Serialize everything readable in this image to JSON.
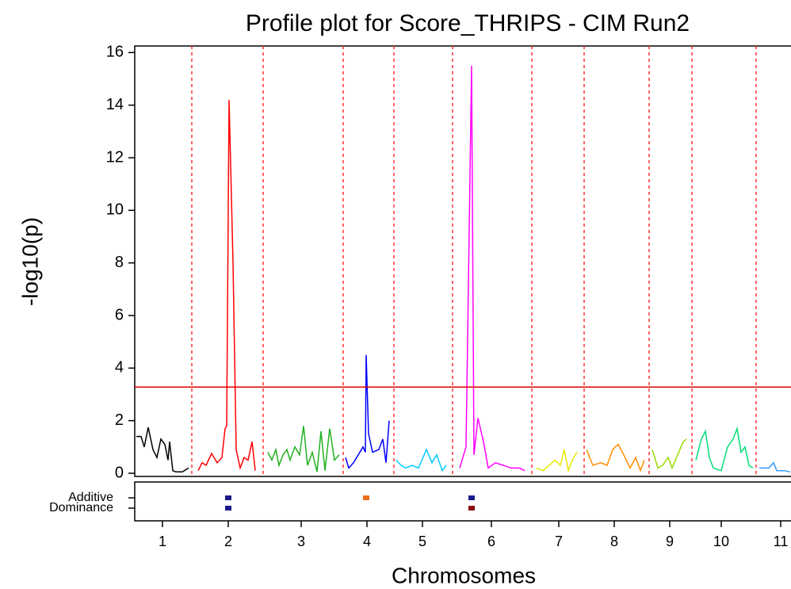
{
  "chart_data": {
    "type": "line",
    "title": "Profile plot for Score_THRIPS - CIM Run2",
    "y_label": "-log10(p)",
    "x_label": "Chromosomes",
    "xlim": [
      0,
      828
    ],
    "ylim": [
      0,
      16.25
    ],
    "yticks": [
      0,
      2,
      4,
      6,
      8,
      10,
      12,
      14,
      16
    ],
    "xticks": [
      {
        "value": 35,
        "label": "1"
      },
      {
        "value": 118,
        "label": "2"
      },
      {
        "value": 210,
        "label": "3"
      },
      {
        "value": 293,
        "label": "4"
      },
      {
        "value": 363,
        "label": "5"
      },
      {
        "value": 450,
        "label": "6"
      },
      {
        "value": 535,
        "label": "7"
      },
      {
        "value": 605,
        "label": "8"
      },
      {
        "value": 675,
        "label": "9"
      },
      {
        "value": 740,
        "label": "10"
      },
      {
        "value": 815,
        "label": "11"
      }
    ],
    "chromosome_boundaries": [
      72,
      162,
      263,
      327,
      401,
      501,
      567,
      649,
      703,
      784
    ],
    "threshold": 3.28,
    "series": [
      {
        "color": "#000000",
        "x": [
          2,
          8,
          12,
          17,
          23,
          28,
          33,
          38,
          42,
          44,
          48,
          52,
          60,
          68
        ],
        "values": [
          1.4,
          1.4,
          1.0,
          1.75,
          0.9,
          0.6,
          1.3,
          1.1,
          0.5,
          1.2,
          0.1,
          0.05,
          0.05,
          0.2
        ]
      },
      {
        "color": "#ff0000",
        "x": [
          80,
          85,
          90,
          97,
          104,
          110,
          114,
          116,
          119,
          124,
          128,
          133,
          138,
          143,
          148,
          152
        ],
        "values": [
          0.1,
          0.4,
          0.3,
          0.75,
          0.4,
          0.6,
          1.7,
          1.8,
          14.2,
          8,
          0.9,
          0.2,
          0.6,
          0.5,
          1.2,
          0.1
        ]
      },
      {
        "color": "#22b022",
        "x": [
          168,
          173,
          178,
          182,
          187,
          192,
          196,
          202,
          208,
          213,
          218,
          224,
          230,
          235,
          240,
          246,
          252,
          258
        ],
        "values": [
          0.8,
          0.5,
          0.9,
          0.3,
          0.7,
          0.9,
          0.5,
          1.0,
          0.7,
          1.8,
          0.3,
          0.8,
          0.05,
          1.6,
          0.1,
          1.7,
          0.5,
          0.7
        ]
      },
      {
        "color": "#0000ff",
        "x": [
          266,
          270,
          276,
          282,
          288,
          291,
          292,
          295,
          300,
          308,
          313,
          317,
          321
        ],
        "values": [
          0.6,
          0.2,
          0.4,
          0.7,
          1.0,
          0.8,
          4.5,
          1.5,
          0.8,
          0.9,
          1.3,
          0.4,
          2.0
        ]
      },
      {
        "color": "#00ccff",
        "x": [
          330,
          336,
          342,
          350,
          358,
          368,
          375,
          381,
          388,
          393
        ],
        "values": [
          0.5,
          0.3,
          0.2,
          0.3,
          0.2,
          0.9,
          0.4,
          0.7,
          0.1,
          0.3
        ]
      },
      {
        "color": "#ff00ff",
        "x": [
          410,
          418,
          425,
          428,
          433,
          440,
          446,
          455,
          465,
          475,
          485,
          492
        ],
        "values": [
          0.2,
          1.0,
          15.5,
          0.7,
          2.1,
          1.2,
          0.2,
          0.4,
          0.3,
          0.2,
          0.2,
          0.1
        ]
      },
      {
        "color": "#e8e800",
        "x": [
          507,
          515,
          523,
          530,
          537,
          542,
          547,
          552,
          558
        ],
        "values": [
          0.2,
          0.1,
          0.3,
          0.5,
          0.3,
          0.9,
          0.1,
          0.5,
          0.8
        ]
      },
      {
        "color": "#ff8c00",
        "x": [
          570,
          578,
          588,
          596,
          603,
          610,
          617,
          625,
          632,
          638,
          643
        ],
        "values": [
          0.9,
          0.3,
          0.4,
          0.3,
          0.9,
          1.1,
          0.7,
          0.2,
          0.6,
          0.1,
          0.5
        ]
      },
      {
        "color": "#99dd00",
        "x": [
          653,
          660,
          666,
          673,
          678,
          685,
          692,
          696
        ],
        "values": [
          0.9,
          0.2,
          0.3,
          0.6,
          0.2,
          0.7,
          1.2,
          1.3
        ]
      },
      {
        "color": "#00dd77",
        "x": [
          708,
          715,
          720,
          725,
          730,
          740,
          748,
          755,
          760,
          765,
          770,
          775,
          780
        ],
        "values": [
          0.5,
          1.3,
          1.6,
          0.6,
          0.2,
          0.1,
          1.0,
          1.3,
          1.7,
          0.8,
          1.0,
          0.3,
          0.2
        ]
      },
      {
        "color": "#3399ff",
        "x": [
          788,
          800,
          806,
          810,
          820,
          827
        ],
        "values": [
          0.2,
          0.2,
          0.4,
          0.1,
          0.1,
          0.05
        ]
      }
    ],
    "effect_tracks": [
      "Additive",
      "Dominance"
    ],
    "effect_markers": [
      {
        "x": 118,
        "track": 0,
        "color": "#1a1a8c"
      },
      {
        "x": 118,
        "track": 1,
        "color": "#1a1a8c"
      },
      {
        "x": 292,
        "track": 0,
        "color": "#e8701a"
      },
      {
        "x": 425,
        "track": 0,
        "color": "#1a1a8c"
      },
      {
        "x": 425,
        "track": 1,
        "color": "#8b1010"
      }
    ]
  }
}
